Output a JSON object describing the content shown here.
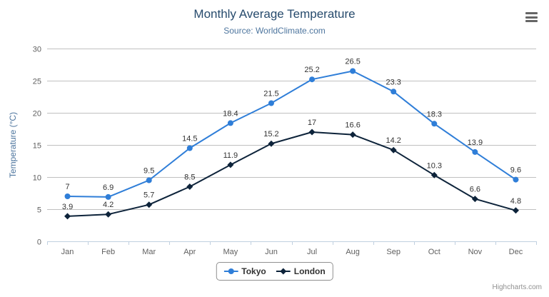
{
  "chart": {
    "title": "Monthly Average Temperature",
    "subtitle": "Source: WorldClimate.com",
    "credits": "Highcharts.com",
    "export_menu_icon": "hamburger-menu"
  },
  "chart_data": {
    "type": "line",
    "title": "Monthly Average Temperature",
    "subtitle": "Source: WorldClimate.com",
    "categories": [
      "Jan",
      "Feb",
      "Mar",
      "Apr",
      "May",
      "Jun",
      "Jul",
      "Aug",
      "Sep",
      "Oct",
      "Nov",
      "Dec"
    ],
    "series": [
      {
        "name": "Tokyo",
        "color": "#2f7ed8",
        "marker": "circle",
        "values": [
          7,
          6.9,
          9.5,
          14.5,
          18.4,
          21.5,
          25.2,
          26.5,
          23.3,
          18.3,
          13.9,
          9.6
        ]
      },
      {
        "name": "London",
        "color": "#0d233a",
        "marker": "diamond",
        "values": [
          3.9,
          4.2,
          5.7,
          8.5,
          11.9,
          15.2,
          17,
          16.6,
          14.2,
          10.3,
          6.6,
          4.8
        ]
      }
    ],
    "xlabel": "",
    "ylabel": "Temperature (°C)",
    "ylim": [
      0,
      30
    ],
    "yticks": [
      0,
      5,
      10,
      15,
      20,
      25,
      30
    ],
    "grid": true,
    "legend_position": "bottom",
    "data_labels": true
  },
  "style": {
    "grid_color": "#C0C0C0",
    "axis_line_color": "#C0D0E0",
    "axis_label_color": "#606060",
    "data_label_color": "#333333"
  }
}
